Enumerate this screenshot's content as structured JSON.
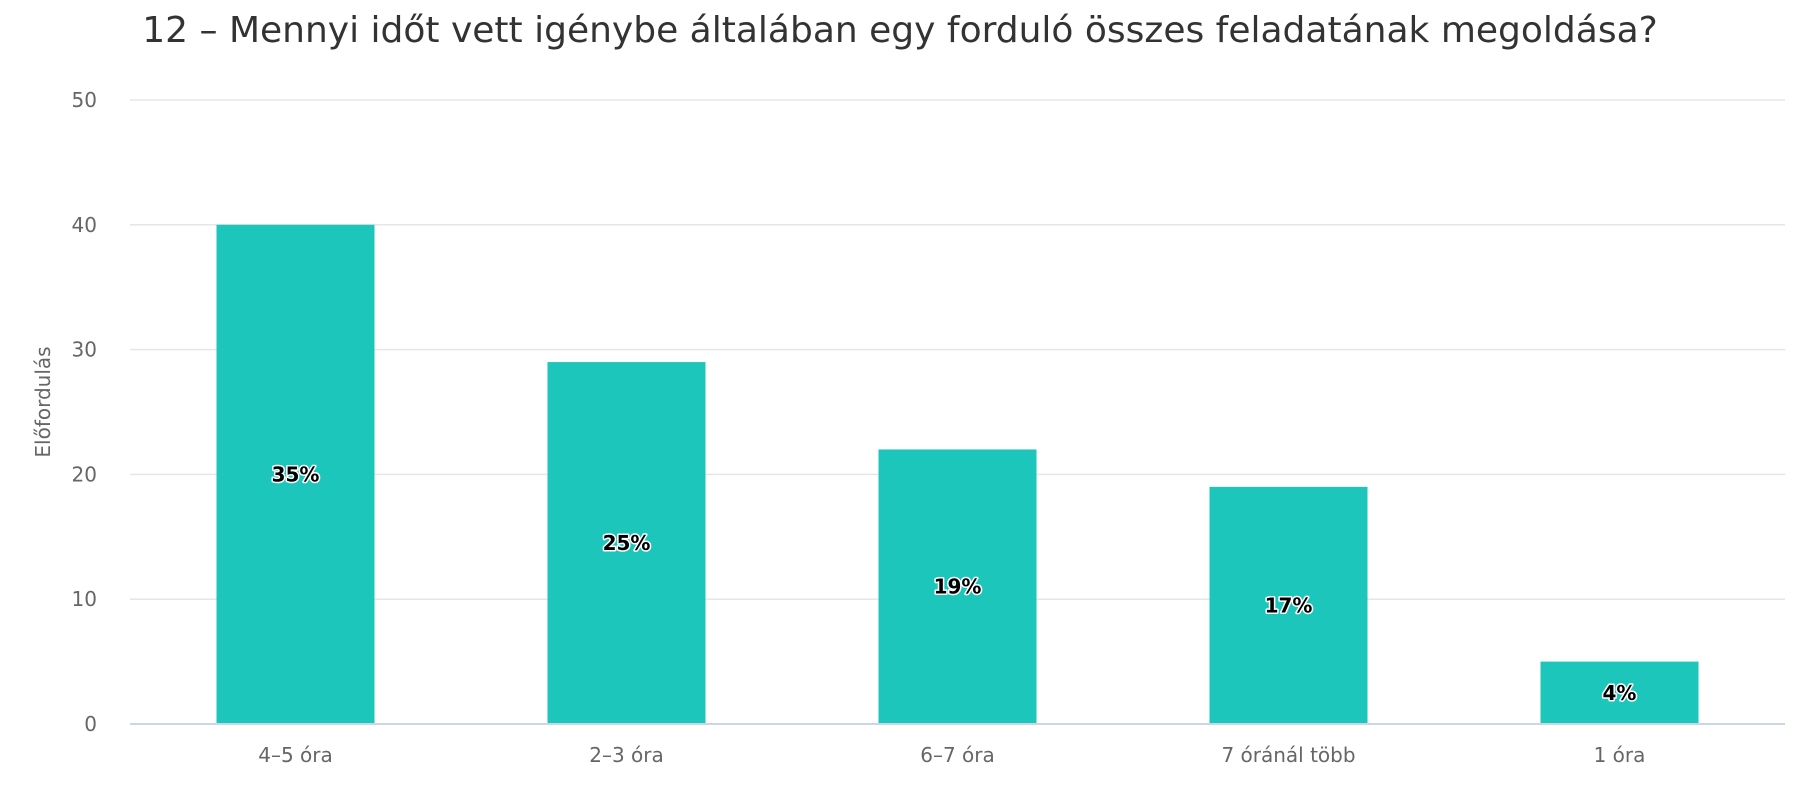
{
  "chart_data": {
    "type": "bar",
    "title": "12 – Mennyi időt vett igénybe általában egy forduló összes feladatának megoldása?",
    "xlabel": "",
    "ylabel": "Előfordulás",
    "categories": [
      "4–5 óra",
      "2–3 óra",
      "6–7 óra",
      "7 óránál több",
      "1 óra"
    ],
    "values": [
      40,
      29,
      22,
      19,
      5
    ],
    "data_labels": [
      "35%",
      "25%",
      "19%",
      "17%",
      "4%"
    ],
    "ylim": [
      0,
      50
    ],
    "yticks": [
      0,
      10,
      20,
      30,
      40,
      50
    ],
    "grid": true,
    "legend": "none",
    "bar_color": "#1dc6ba"
  }
}
